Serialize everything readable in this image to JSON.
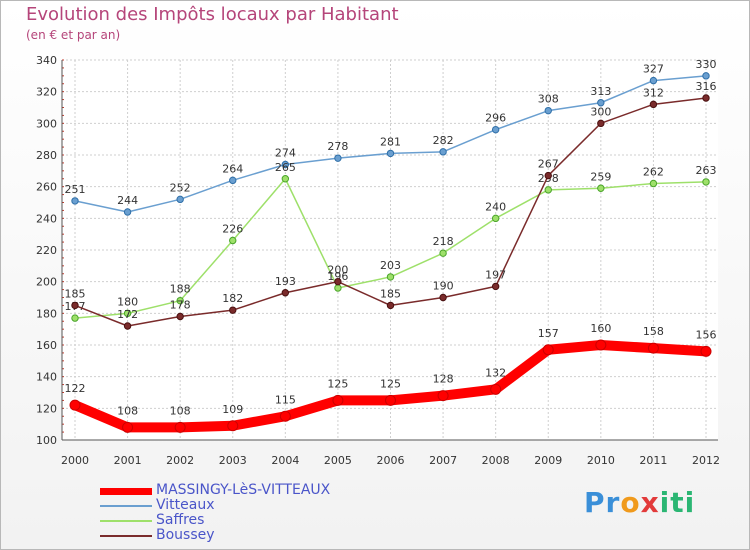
{
  "title": "Evolution des Impôts locaux par Habitant",
  "subtitle": "(en € et par an)",
  "brand": {
    "parts": [
      "Pr",
      "o",
      "x",
      "iti"
    ],
    "colors": [
      "#3a8fd8",
      "#f09a1c",
      "#e23a3a",
      "#2bb673"
    ]
  },
  "chart_data": {
    "type": "line",
    "x": [
      "2000",
      "2001",
      "2002",
      "2003",
      "2004",
      "2005",
      "2006",
      "2007",
      "2008",
      "2009",
      "2010",
      "2011",
      "2012"
    ],
    "ylim": [
      100,
      340
    ],
    "yticks": [
      100,
      120,
      140,
      160,
      180,
      200,
      220,
      240,
      260,
      280,
      300,
      320,
      340
    ],
    "grid": true,
    "legend_position": "bottom-left",
    "series": [
      {
        "name": "MASSINGY-LèS-VITTEAUX",
        "color": "#ff0000",
        "values": [
          122,
          108,
          108,
          109,
          115,
          125,
          125,
          128,
          132,
          157,
          160,
          158,
          156
        ]
      },
      {
        "name": "Vitteaux",
        "color": "#6a9fd0",
        "values": [
          251,
          244,
          252,
          264,
          274,
          278,
          281,
          282,
          296,
          308,
          313,
          327,
          330
        ]
      },
      {
        "name": "Saffres",
        "color": "#9ee06a",
        "values": [
          177,
          180,
          188,
          226,
          265,
          196,
          203,
          218,
          240,
          258,
          259,
          262,
          263
        ]
      },
      {
        "name": "Boussey",
        "color": "#7a2b2b",
        "values": [
          185,
          172,
          178,
          182,
          193,
          200,
          185,
          190,
          197,
          267,
          300,
          312,
          316
        ]
      }
    ]
  }
}
